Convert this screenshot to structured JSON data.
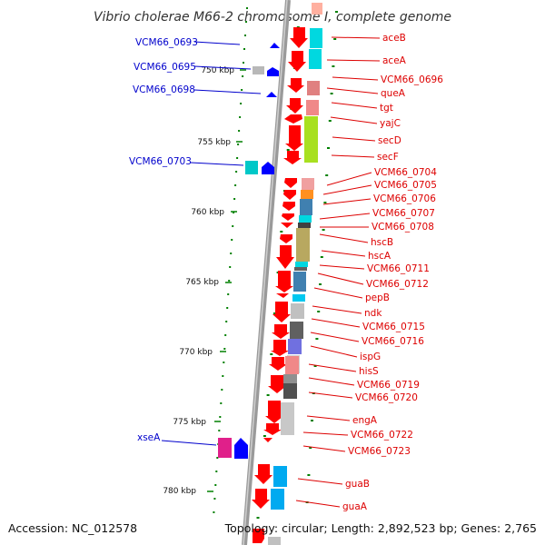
{
  "title": "Vibrio cholerae M66-2 chromosome I, complete genome",
  "footer": {
    "accession": "Accession: NC_012578",
    "topology": "Topology: circular; Length: 2,892,523 bp; Genes: 2,765"
  },
  "colors": {
    "gene_red": "#ff0000",
    "gene_blue": "#0000ff",
    "label_red": "#dd0000",
    "label_blue": "#0000cc",
    "tick_green": "#008000",
    "backbone": "#9a9a9a"
  },
  "scale_labels": [
    {
      "kbp": 750,
      "text": "750 kbp"
    },
    {
      "kbp": 755,
      "text": "755 kbp"
    },
    {
      "kbp": 760,
      "text": "760 kbp"
    },
    {
      "kbp": 765,
      "text": "765 kbp"
    },
    {
      "kbp": 770,
      "text": "770 kbp"
    },
    {
      "kbp": 775,
      "text": "775 kbp"
    },
    {
      "kbp": 780,
      "text": "780 kbp"
    }
  ],
  "right_labels": [
    "aceB",
    "aceA",
    "VCM66_0696",
    "queA",
    "tgt",
    "yajC",
    "secD",
    "secF",
    "VCM66_0704",
    "VCM66_0705",
    "VCM66_0706",
    "VCM66_0707",
    "VCM66_0708",
    "hscB",
    "hscA",
    "VCM66_0711",
    "VCM66_0712",
    "pepB",
    "ndk",
    "VCM66_0715",
    "VCM66_0716",
    "ispG",
    "hisS",
    "VCM66_0719",
    "VCM66_0720",
    "engA",
    "VCM66_0722",
    "VCM66_0723",
    "guaB",
    "guaA"
  ],
  "left_labels": [
    "VCM66_0693",
    "VCM66_0695",
    "VCM66_0698",
    "VCM66_0703",
    "xseA"
  ]
}
